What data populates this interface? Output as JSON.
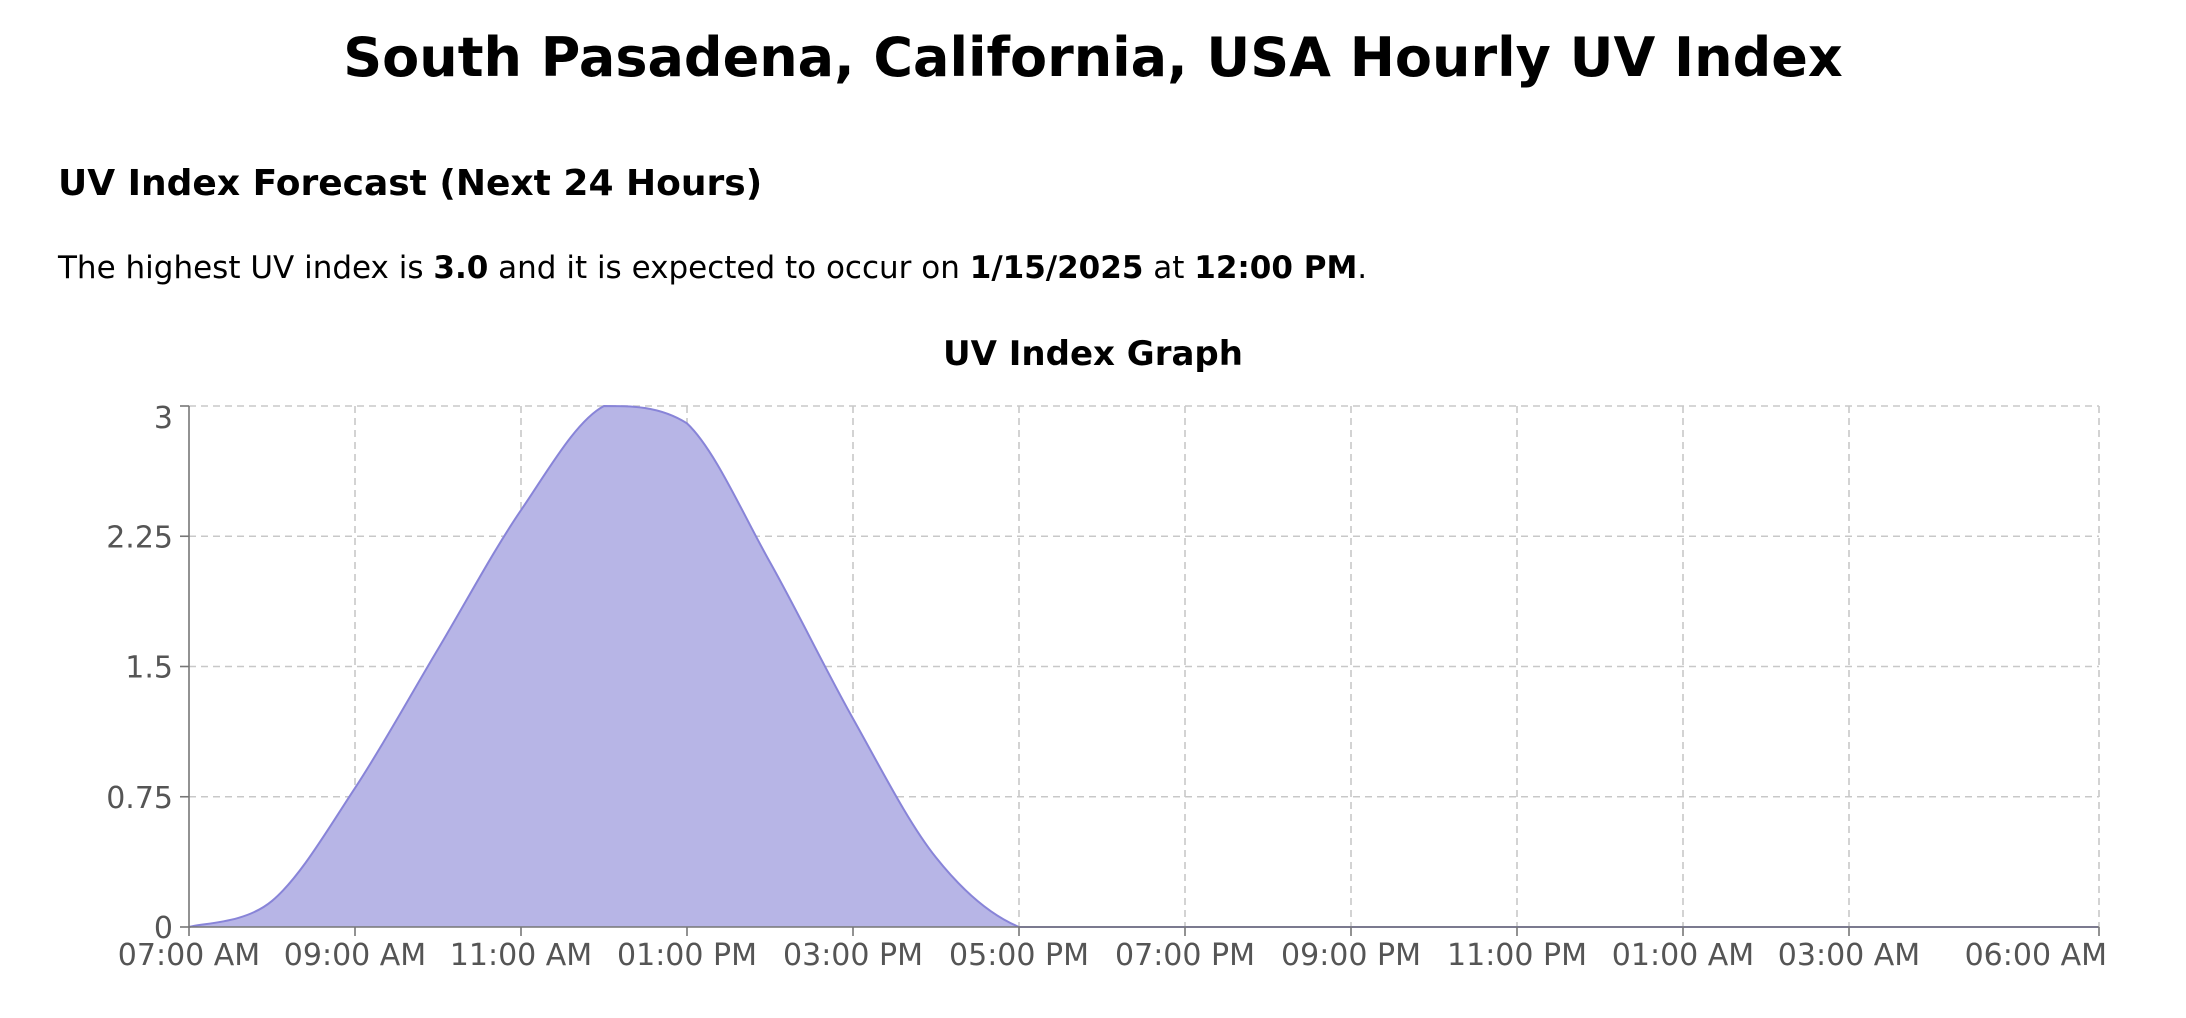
{
  "page": {
    "title": "South Pasadena, California, USA Hourly UV Index"
  },
  "forecast": {
    "heading": "UV Index Forecast (Next 24 Hours)",
    "text_before_max": "The highest UV index is ",
    "max_uv": "3.0",
    "text_before_date": " and it is expected to occur on ",
    "date": "1/15/2025",
    "text_before_time": " at ",
    "time": "12:00 PM",
    "text_end": "."
  },
  "chart_data": {
    "type": "area",
    "title": "UV Index Graph",
    "xlabel": "",
    "ylabel": "",
    "x_unit": "hour of forecast window, 07:00 AM on 1/15/2025 through 06:00 AM the next day",
    "x_tick_labels": [
      "07:00 AM",
      "09:00 AM",
      "11:00 AM",
      "01:00 PM",
      "03:00 PM",
      "05:00 PM",
      "07:00 PM",
      "09:00 PM",
      "11:00 PM",
      "01:00 AM",
      "03:00 AM",
      "06:00 AM"
    ],
    "y_ticks": [
      0,
      0.75,
      1.5,
      2.25,
      3
    ],
    "y_tick_labels": [
      "0",
      "0.75",
      "1.5",
      "2.25",
      "3"
    ],
    "ylim": [
      0,
      3
    ],
    "grid": true,
    "fill_color": "#b7b5e6",
    "line_color": "#8884d8",
    "series": [
      {
        "x": [
          "07:00 AM",
          "08:00 AM",
          "09:00 AM",
          "10:00 AM",
          "11:00 AM",
          "12:00 PM",
          "01:00 PM",
          "02:00 PM",
          "03:00 PM",
          "04:00 PM",
          "05:00 PM",
          "06:00 PM",
          "07:00 PM",
          "08:00 PM",
          "09:00 PM",
          "10:00 PM",
          "11:00 PM",
          "12:00 AM",
          "01:00 AM",
          "02:00 AM",
          "03:00 AM",
          "04:00 AM",
          "05:00 AM",
          "06:00 AM"
        ],
        "values": [
          0.0,
          0.15,
          0.8,
          1.6,
          2.4,
          3.0,
          2.9,
          2.1,
          1.2,
          0.4,
          0.0,
          0.0,
          0.0,
          0.0,
          0.0,
          0.0,
          0.0,
          0.0,
          0.0,
          0.0,
          0.0,
          0.0,
          0.0,
          0.0
        ]
      }
    ]
  }
}
